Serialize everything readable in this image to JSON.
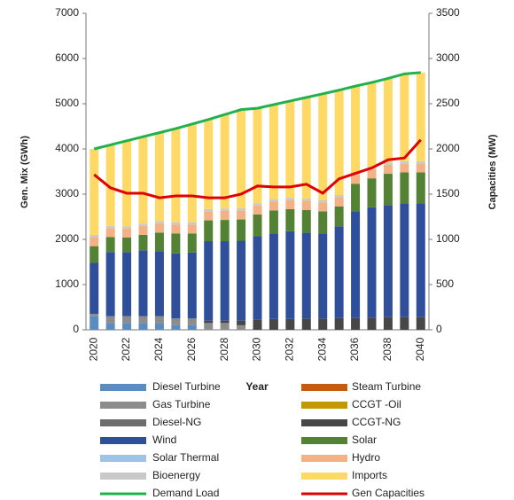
{
  "chart_data": {
    "type": "stacked_bar_line",
    "x_label": "Year",
    "y_label": "Gen. Mix (GWh)",
    "y2_label": "Capacities (MW)",
    "categories": [
      2020,
      null,
      2022,
      null,
      2024,
      null,
      2026,
      null,
      2028,
      null,
      2030,
      null,
      2032,
      null,
      2034,
      null,
      2036,
      null,
      2038,
      null,
      2040
    ],
    "ylim": [
      0,
      7000
    ],
    "yticks": [
      0,
      1000,
      2000,
      3000,
      4000,
      5000,
      6000,
      7000
    ],
    "y2lim": [
      0,
      3500
    ],
    "y2ticks": [
      0,
      500,
      1000,
      1500,
      2000,
      2500,
      3000,
      3500
    ],
    "series": [
      {
        "name": "Diesel Turbine",
        "color": "#5b8cc0",
        "values": [
          300,
          150,
          150,
          150,
          150,
          100,
          100,
          0,
          0,
          0,
          0,
          0,
          0,
          0,
          0,
          0,
          0,
          0,
          0,
          0,
          0
        ]
      },
      {
        "name": "Steam Turbine",
        "color": "#c55a11",
        "values": [
          0,
          0,
          0,
          0,
          0,
          0,
          0,
          0,
          0,
          0,
          0,
          0,
          0,
          0,
          0,
          0,
          0,
          0,
          0,
          0,
          0
        ]
      },
      {
        "name": "Gas Turbine",
        "color": "#8c8c8c",
        "values": [
          50,
          150,
          150,
          150,
          150,
          150,
          150,
          150,
          150,
          100,
          0,
          0,
          0,
          0,
          0,
          0,
          0,
          0,
          0,
          0,
          0
        ]
      },
      {
        "name": "CCGT -Oil",
        "color": "#c09a00",
        "values": [
          0,
          0,
          0,
          0,
          0,
          0,
          0,
          0,
          0,
          0,
          0,
          0,
          0,
          0,
          0,
          0,
          0,
          0,
          0,
          0,
          0
        ]
      },
      {
        "name": "Diesel-NG",
        "color": "#6d6d6d",
        "values": [
          0,
          0,
          0,
          0,
          0,
          0,
          0,
          0,
          0,
          0,
          0,
          0,
          0,
          0,
          0,
          0,
          0,
          0,
          0,
          0,
          0
        ]
      },
      {
        "name": "CCGT-NG",
        "color": "#474747",
        "values": [
          0,
          0,
          0,
          0,
          0,
          0,
          0,
          50,
          50,
          100,
          230,
          240,
          240,
          250,
          250,
          260,
          260,
          270,
          280,
          280,
          280
        ]
      },
      {
        "name": "Wind",
        "color": "#2f4f9a",
        "values": [
          1130,
          1420,
          1420,
          1460,
          1440,
          1440,
          1460,
          1760,
          1760,
          1770,
          1840,
          1890,
          1940,
          1900,
          1880,
          2030,
          2360,
          2440,
          2480,
          2520,
          2520
        ]
      },
      {
        "name": "Solar",
        "color": "#548235",
        "values": [
          370,
          330,
          320,
          340,
          410,
          440,
          420,
          460,
          470,
          470,
          480,
          510,
          490,
          500,
          490,
          440,
          610,
          640,
          690,
          680,
          680
        ]
      },
      {
        "name": "Solar Thermal",
        "color": "#9dc3e6",
        "values": [
          0,
          0,
          0,
          0,
          0,
          0,
          0,
          0,
          0,
          0,
          0,
          0,
          0,
          0,
          0,
          0,
          0,
          0,
          0,
          0,
          0
        ]
      },
      {
        "name": "Hydro",
        "color": "#f4b183",
        "values": [
          200,
          200,
          200,
          200,
          200,
          200,
          200,
          200,
          200,
          200,
          200,
          200,
          200,
          200,
          200,
          200,
          200,
          200,
          200,
          200,
          200
        ]
      },
      {
        "name": "Bioenergy",
        "color": "#c9c9c9",
        "values": [
          50,
          50,
          50,
          50,
          50,
          50,
          50,
          50,
          50,
          50,
          50,
          50,
          50,
          50,
          50,
          50,
          50,
          50,
          50,
          50,
          50
        ]
      },
      {
        "name": "Imports",
        "color": "#ffd966",
        "values": [
          1900,
          1790,
          1890,
          1920,
          1960,
          2070,
          2170,
          1980,
          2080,
          2180,
          2100,
          2090,
          2140,
          2240,
          2350,
          2320,
          1910,
          1870,
          1860,
          1930,
          1960
        ]
      },
      {
        "name": "Demand Load",
        "color": "#22b14c",
        "line": true,
        "values": [
          4000,
          4090,
          4180,
          4270,
          4360,
          4450,
          4550,
          4650,
          4760,
          4870,
          4900,
          4980,
          5060,
          5140,
          5220,
          5300,
          5390,
          5470,
          5560,
          5660,
          5690
        ]
      },
      {
        "name": "Gen Capacities",
        "color": "#e00000",
        "line": true,
        "axis": "y2",
        "values": [
          1716,
          1570,
          1510,
          1510,
          1460,
          1480,
          1480,
          1460,
          1460,
          1500,
          1590,
          1580,
          1580,
          1610,
          1510,
          1670,
          1730,
          1790,
          1880,
          1900,
          2100
        ]
      }
    ]
  }
}
